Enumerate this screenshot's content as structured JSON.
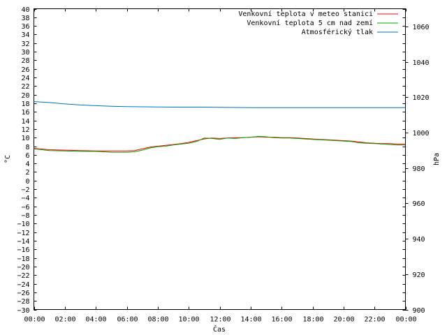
{
  "chart_data": {
    "type": "line",
    "xlabel": "Čas",
    "ylabel_left": "°C",
    "ylabel_right": "hPa",
    "x_ticks": [
      "00:00",
      "02:00",
      "04:00",
      "06:00",
      "08:00",
      "10:00",
      "12:00",
      "14:00",
      "16:00",
      "18:00",
      "20:00",
      "22:00",
      "00:00"
    ],
    "x_range_hours": [
      0,
      24
    ],
    "ylim_left": [
      -30,
      40
    ],
    "ytick_step_left": 2,
    "ylim_right": [
      900,
      1070
    ],
    "ytick_step_right": 20,
    "grid": false,
    "legend_placement": "top-right",
    "series": [
      {
        "name": "Venkovní teplota v meteo stanici",
        "axis": "left",
        "color": "#ff0000",
        "x": [
          0,
          1,
          2,
          3,
          4,
          5,
          6,
          6.5,
          7,
          7.5,
          8,
          8.5,
          9,
          9.5,
          10,
          10.5,
          11,
          11.5,
          12,
          12.5,
          13,
          13.5,
          14,
          14.5,
          15,
          15.5,
          16,
          16.5,
          17,
          17.5,
          18,
          18.5,
          19,
          19.5,
          20,
          20.5,
          21,
          21.5,
          22,
          22.5,
          23,
          23.5,
          24
        ],
        "y": [
          7.5,
          7.2,
          7.1,
          7.0,
          6.9,
          6.9,
          6.9,
          7.0,
          7.4,
          7.8,
          8.0,
          8.2,
          8.4,
          8.6,
          8.9,
          9.3,
          9.7,
          9.9,
          9.8,
          9.9,
          10.0,
          10.0,
          10.1,
          10.2,
          10.1,
          10.1,
          10.0,
          10.0,
          9.9,
          9.8,
          9.7,
          9.6,
          9.5,
          9.4,
          9.3,
          9.2,
          9.0,
          8.8,
          8.7,
          8.6,
          8.6,
          8.5,
          8.5
        ]
      },
      {
        "name": "Venkovní teplota 5 cm nad zemí",
        "axis": "left",
        "color": "#00a000",
        "x": [
          0,
          1,
          2,
          3,
          4,
          5,
          6,
          6.5,
          7,
          7.5,
          8,
          8.5,
          9,
          9.5,
          10,
          10.5,
          11,
          11.5,
          12,
          12.5,
          13,
          13.5,
          14,
          14.5,
          15,
          15.5,
          16,
          16.5,
          17,
          17.5,
          18,
          18.5,
          19,
          19.5,
          20,
          20.5,
          21,
          21.5,
          22,
          22.5,
          23,
          23.5,
          24
        ],
        "y": [
          7.4,
          7.0,
          6.9,
          6.8,
          6.8,
          6.6,
          6.6,
          6.7,
          7.1,
          7.6,
          7.9,
          8.0,
          8.3,
          8.5,
          8.7,
          9.1,
          9.9,
          9.8,
          9.6,
          9.9,
          9.8,
          10.0,
          10.1,
          10.3,
          10.2,
          10.0,
          9.9,
          9.9,
          9.8,
          9.7,
          9.6,
          9.5,
          9.4,
          9.3,
          9.2,
          9.1,
          8.8,
          8.7,
          8.6,
          8.5,
          8.4,
          8.3,
          8.3
        ]
      },
      {
        "name": "Atmosférický tlak",
        "axis": "right",
        "color": "#0070c0",
        "x": [
          0,
          1,
          2,
          3,
          4,
          5,
          6,
          7,
          8,
          9,
          10,
          11,
          12,
          13,
          14,
          15,
          16,
          17,
          18,
          19,
          20,
          21,
          22,
          23,
          24
        ],
        "y": [
          1017.5,
          1017.0,
          1016.2,
          1015.6,
          1015.2,
          1014.9,
          1014.7,
          1014.6,
          1014.5,
          1014.4,
          1014.4,
          1014.4,
          1014.3,
          1014.2,
          1014.1,
          1014.1,
          1014.1,
          1014.1,
          1014.1,
          1014.1,
          1014.1,
          1014.1,
          1014.1,
          1014.1,
          1014.1
        ]
      }
    ]
  }
}
